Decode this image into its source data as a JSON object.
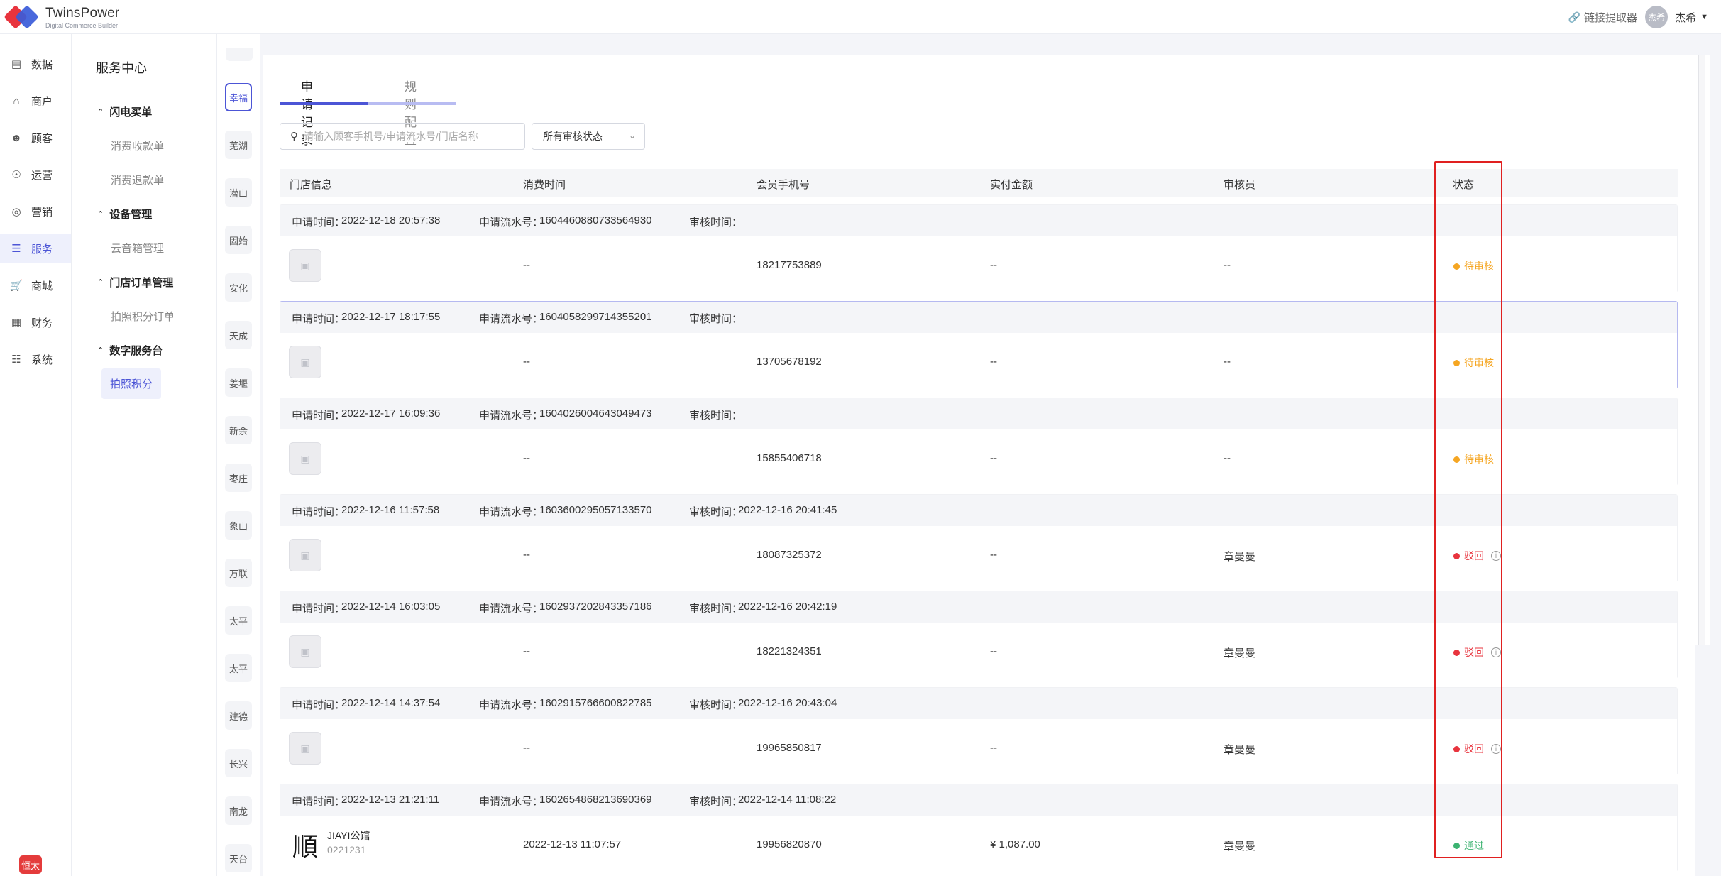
{
  "app": {
    "name": "TwinsPower",
    "subtitle": "Digital Commerce Builder"
  },
  "topbar": {
    "link_label": "链接提取器",
    "avatar_text": "杰希",
    "user_name": "杰希"
  },
  "leftnav": [
    "数据",
    "商户",
    "顾客",
    "运营",
    "营销",
    "服务",
    "商城",
    "财务",
    "系统"
  ],
  "leftnav_icons": [
    "chart-icon",
    "shop-icon",
    "users-icon",
    "compass-icon",
    "megaphone-icon",
    "list-icon",
    "cart-icon",
    "finance-icon",
    "grid-icon"
  ],
  "bottom_badge": "恒太",
  "subnav": {
    "title": "服务中心",
    "groups": [
      {
        "label": "闪电买单",
        "items": [
          "消费收款单",
          "消费退款单"
        ]
      },
      {
        "label": "设备管理",
        "items": [
          "云音箱管理"
        ]
      },
      {
        "label": "门店订单管理",
        "items": [
          "拍照积分订单"
        ]
      },
      {
        "label": "数字服务台",
        "items": [
          "拍照积分"
        ]
      }
    ]
  },
  "stores": [
    "幸福",
    "芜湖",
    "潜山",
    "固始",
    "安化",
    "天成",
    "姜堰",
    "新余",
    "枣庄",
    "象山",
    "万联",
    "太平",
    "太平",
    "建德",
    "长兴",
    "南龙",
    "天台"
  ],
  "tabs": [
    "申请记录",
    "规则配置"
  ],
  "search": {
    "placeholder": "请输入顾客手机号/申请流水号/门店名称",
    "value": ""
  },
  "filter": {
    "selected": "所有审核状态"
  },
  "columns": [
    "门店信息",
    "消费时间",
    "会员手机号",
    "实付金额",
    "审核员",
    "状态"
  ],
  "labels": {
    "apply_time": "申请时间：",
    "serial": "申请流水号：",
    "review_time": "审核时间："
  },
  "records": [
    {
      "apply_time": "2022-12-18 20:57:38",
      "serial": "1604460880733564930",
      "review_time": "",
      "store_name": "",
      "store_code": "",
      "consume_time": "--",
      "phone": "18217753889",
      "amount": "--",
      "reviewer": "--",
      "status": "待审核",
      "status_color": "#f5a623"
    },
    {
      "apply_time": "2022-12-17 18:17:55",
      "serial": "1604058299714355201",
      "review_time": "",
      "store_name": "",
      "store_code": "",
      "consume_time": "--",
      "phone": "13705678192",
      "amount": "--",
      "reviewer": "--",
      "status": "待审核",
      "status_color": "#f5a623"
    },
    {
      "apply_time": "2022-12-17 16:09:36",
      "serial": "1604026004643049473",
      "review_time": "",
      "store_name": "",
      "store_code": "",
      "consume_time": "--",
      "phone": "15855406718",
      "amount": "--",
      "reviewer": "--",
      "status": "待审核",
      "status_color": "#f5a623"
    },
    {
      "apply_time": "2022-12-16 11:57:58",
      "serial": "1603600295057133570",
      "review_time": "2022-12-16 20:41:45",
      "store_name": "",
      "store_code": "",
      "consume_time": "--",
      "phone": "18087325372",
      "amount": "--",
      "reviewer": "章曼曼",
      "status": "驳回",
      "status_color": "#e8343e"
    },
    {
      "apply_time": "2022-12-14 16:03:05",
      "serial": "1602937202843357186",
      "review_time": "2022-12-16 20:42:19",
      "store_name": "",
      "store_code": "",
      "consume_time": "--",
      "phone": "18221324351",
      "amount": "--",
      "reviewer": "章曼曼",
      "status": "驳回",
      "status_color": "#e8343e"
    },
    {
      "apply_time": "2022-12-14 14:37:54",
      "serial": "1602915766600822785",
      "review_time": "2022-12-16 20:43:04",
      "store_name": "",
      "store_code": "",
      "consume_time": "--",
      "phone": "19965850817",
      "amount": "--",
      "reviewer": "章曼曼",
      "status": "驳回",
      "status_color": "#e8343e"
    },
    {
      "apply_time": "2022-12-13 21:21:11",
      "serial": "1602654868213690369",
      "review_time": "2022-12-14 11:08:22",
      "store_name": "JIAYI公馆",
      "store_code": "0221231",
      "consume_time": "2022-12-13 11:07:57",
      "phone": "19956820870",
      "amount": "¥ 1,087.00",
      "reviewer": "章曼曼",
      "status": "通过",
      "status_color": "#3cb371"
    }
  ]
}
